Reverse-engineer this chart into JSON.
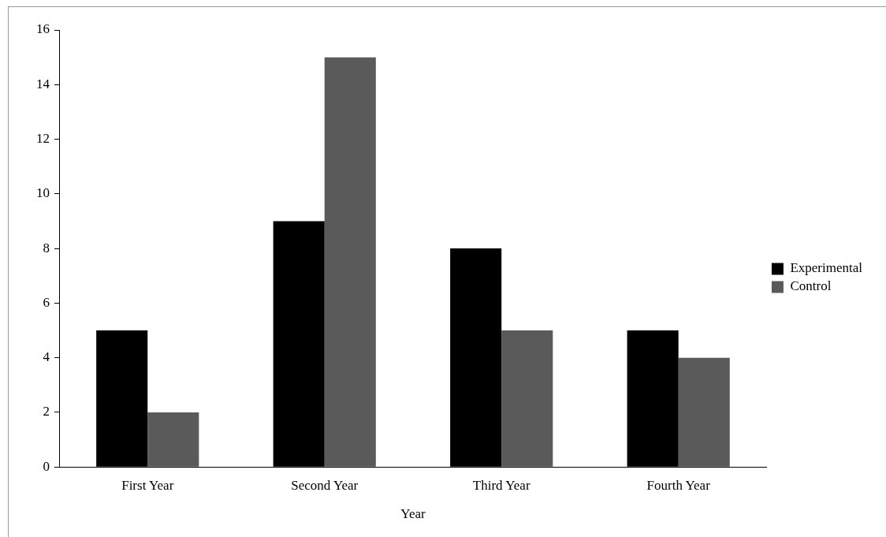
{
  "chart_data": {
    "type": "bar",
    "xlabel": "Year",
    "categories": [
      "First Year",
      "Second Year",
      "Third Year",
      "Fourth Year"
    ],
    "series": [
      {
        "name": "Experimental",
        "color": "#000000",
        "values": [
          5,
          9,
          8,
          5
        ]
      },
      {
        "name": "Control",
        "color": "#5a5a5a",
        "values": [
          2,
          15,
          5,
          4
        ]
      }
    ],
    "ylim": [
      0,
      16
    ],
    "yticks": [
      0,
      2,
      4,
      6,
      8,
      10,
      12,
      14,
      16
    ],
    "grid": false,
    "legend": "right"
  }
}
